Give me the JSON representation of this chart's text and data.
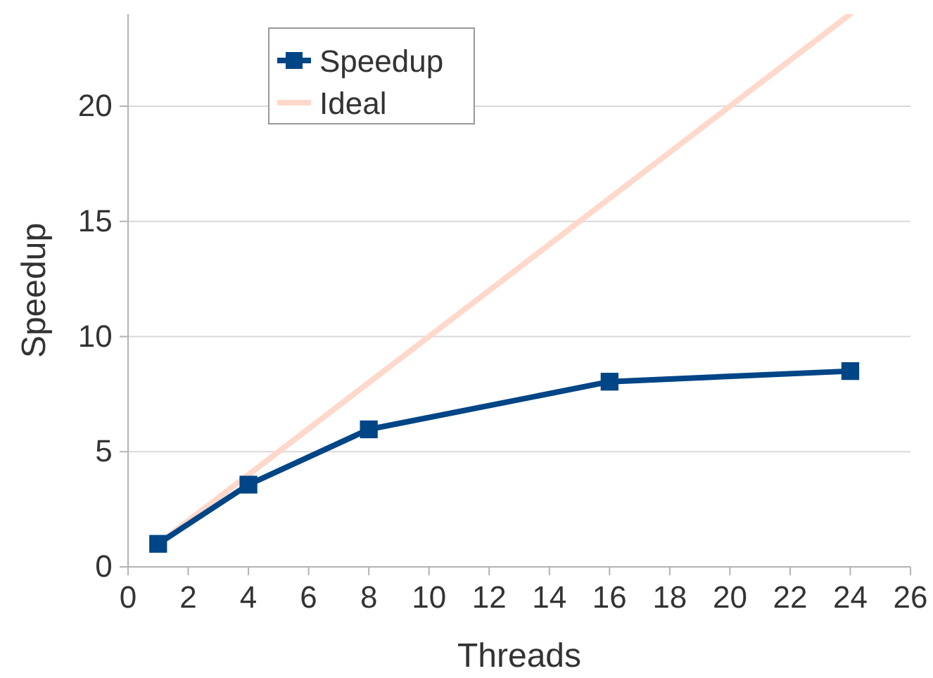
{
  "chart_data": {
    "type": "line",
    "xlabel": "Threads",
    "ylabel": "Speedup",
    "xlim": [
      0,
      26
    ],
    "xticks": [
      0,
      2,
      4,
      6,
      8,
      10,
      12,
      14,
      16,
      18,
      20,
      22,
      24,
      26
    ],
    "ylim": [
      0,
      24
    ],
    "yticks": [
      0,
      5,
      10,
      15,
      20
    ],
    "grid": "y",
    "legend": "top left",
    "series": [
      {
        "name": "Speedup",
        "color": "#004586",
        "x": [
          1,
          4,
          8,
          16,
          24
        ],
        "values": [
          1,
          3.57,
          5.97,
          8.04,
          8.5
        ],
        "marker": "square"
      },
      {
        "name": "Ideal",
        "color": "#ffd8cc",
        "x": [
          1,
          24
        ],
        "values": [
          1,
          24
        ],
        "marker": "none"
      }
    ]
  }
}
